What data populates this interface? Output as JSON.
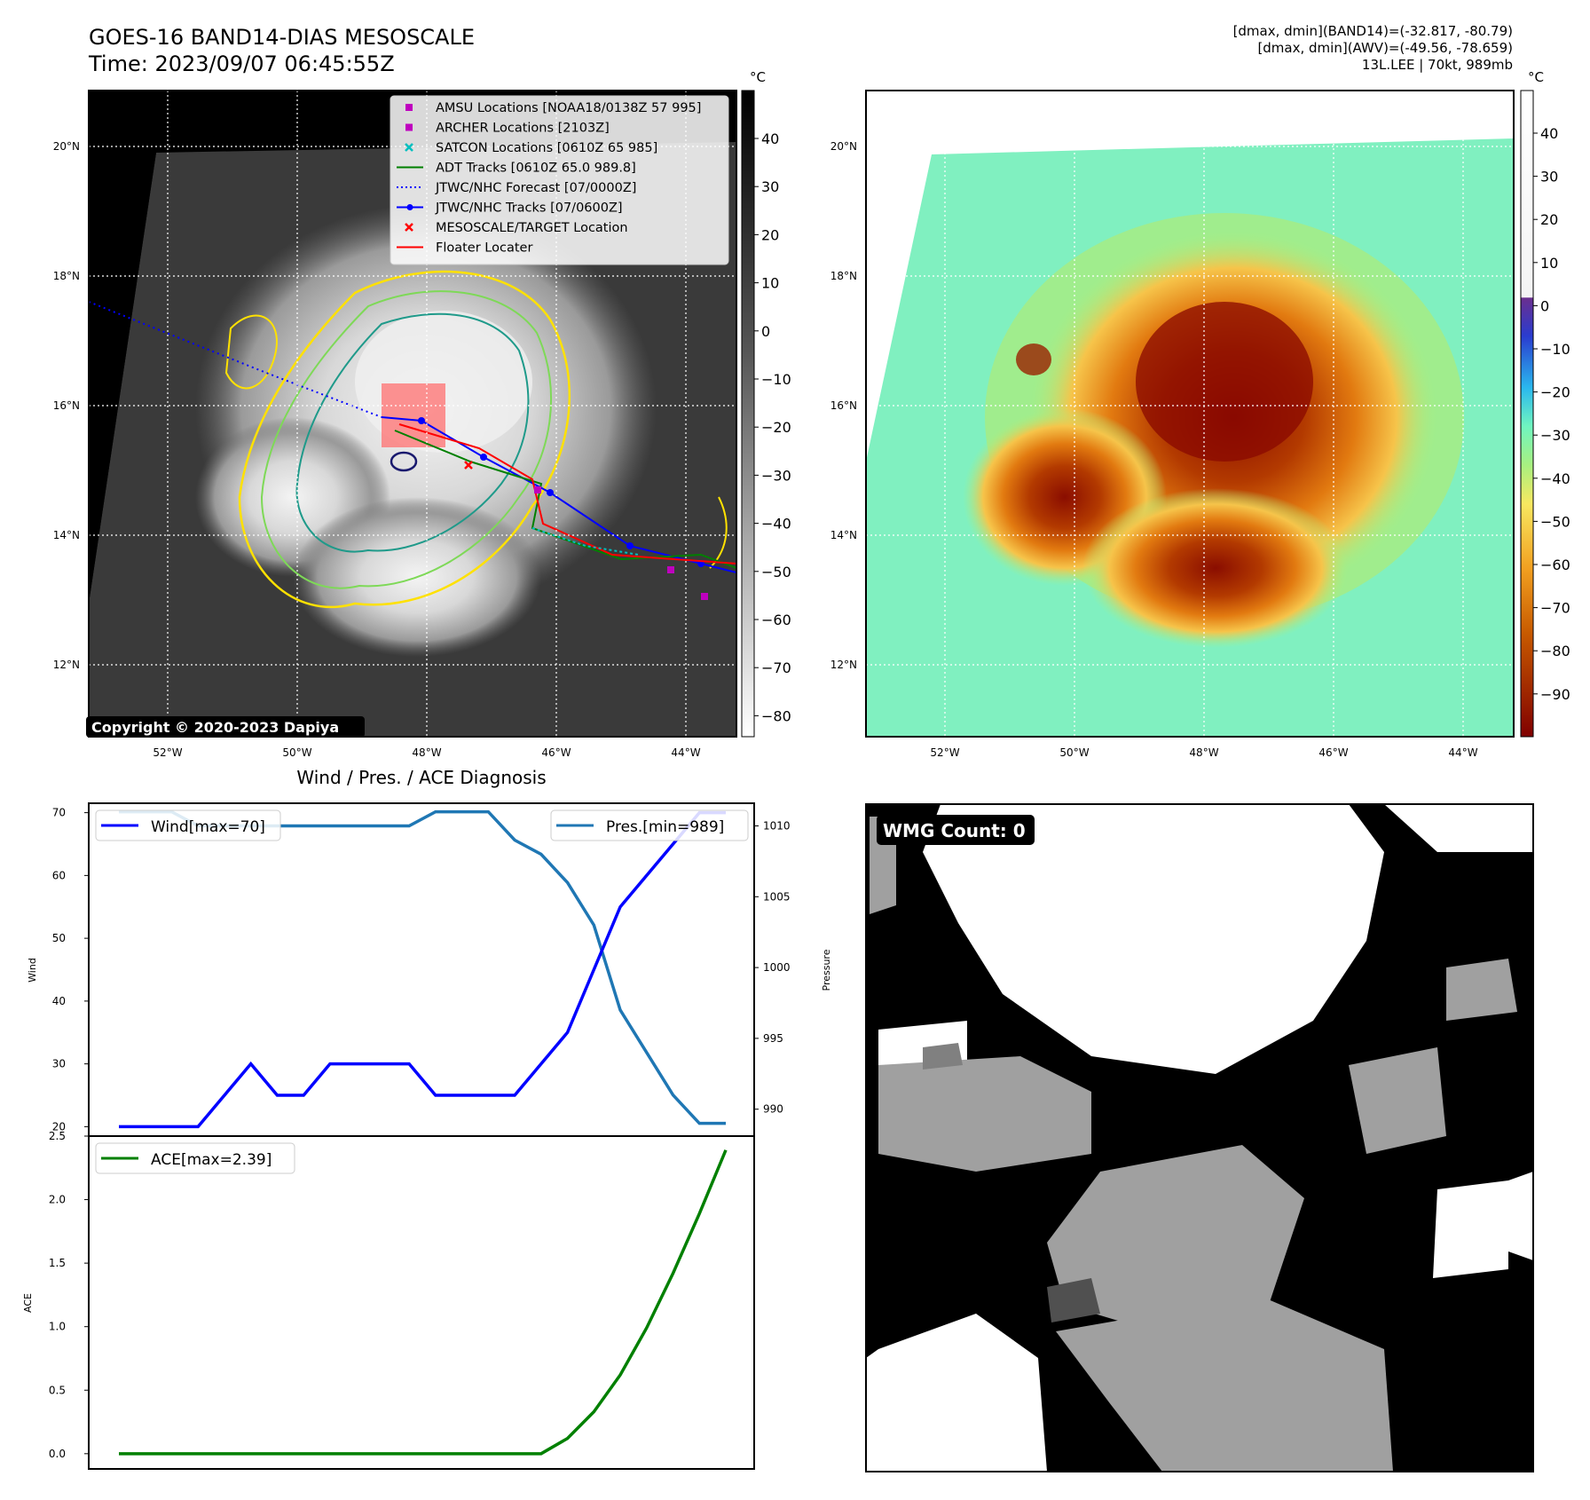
{
  "header": {
    "title_line1": "GOES-16 BAND14-DIAS MESOSCALE",
    "title_line2": "Time: 2023/09/07 06:45:55Z",
    "right_line1": "[dmax, dmin](BAND14)=(-32.817, -80.79)",
    "right_line2": "[dmax, dmin](AWV)=(-49.56, -78.659)",
    "right_line3": "13L.LEE | 70kt, 989mb"
  },
  "map_axes": {
    "lon_ticks": [
      "52°W",
      "50°W",
      "48°W",
      "46°W",
      "44°W"
    ],
    "lat_ticks": [
      "20°N",
      "18°N",
      "16°N",
      "14°N",
      "12°N"
    ]
  },
  "left_map": {
    "copyright": "Copyright © 2020-2023 Dapiya",
    "colorbar_unit": "°C",
    "colorbar_ticks": [
      "40",
      "30",
      "20",
      "10",
      "0",
      "−10",
      "−20",
      "−30",
      "−40",
      "−50",
      "−60",
      "−70",
      "−80"
    ],
    "legend": [
      {
        "label": "AMSU Locations [NOAA18/0138Z 57 995]",
        "color": "#bf00bf",
        "marker": "square"
      },
      {
        "label": "ARCHER Locations [2103Z]",
        "color": "#bf00bf",
        "marker": "square"
      },
      {
        "label": "SATCON Locations [0610Z 65 985]",
        "color": "#00bfbf",
        "marker": "x"
      },
      {
        "label": "ADT Tracks [0610Z 65.0 989.8]",
        "color": "#008000",
        "marker": "line"
      },
      {
        "label": "JTWC/NHC Forecast [07/0000Z]",
        "color": "#0000ff",
        "marker": "dotted"
      },
      {
        "label": "JTWC/NHC Tracks [07/0600Z]",
        "color": "#0000ff",
        "marker": "line-dot"
      },
      {
        "label": "MESOSCALE/TARGET Location",
        "color": "#ff0000",
        "marker": "x"
      },
      {
        "label": "Floater Locater",
        "color": "#ff0000",
        "marker": "line"
      }
    ]
  },
  "right_map": {
    "colorbar_unit": "°C",
    "colorbar_ticks": [
      "40",
      "30",
      "20",
      "10",
      "0",
      "−10",
      "−20",
      "−30",
      "−40",
      "−50",
      "−60",
      "−70",
      "−80",
      "−90"
    ]
  },
  "wmg": {
    "label": "WMG Count: 0"
  },
  "chart_data": [
    {
      "type": "line",
      "title": "Wind / Pres. / ACE Diagnosis",
      "x": [
        0,
        1,
        2,
        3,
        4,
        5,
        6,
        7,
        8,
        9,
        10,
        11,
        12,
        13,
        14,
        15,
        16,
        17,
        18,
        19,
        20,
        21,
        22,
        23
      ],
      "series": [
        {
          "name": "Wind[max=70]",
          "axis": "left",
          "color": "#0000ff",
          "values": [
            20,
            20,
            20,
            20,
            25,
            30,
            25,
            25,
            30,
            30,
            30,
            30,
            25,
            25,
            25,
            25,
            30,
            35,
            45,
            55,
            60,
            65,
            70,
            70
          ]
        },
        {
          "name": "Pres.[min=989]",
          "axis": "right",
          "color": "#1f77b4",
          "values": [
            1011,
            1011,
            1011,
            1010,
            1010,
            1010,
            1010,
            1010,
            1010,
            1010,
            1010,
            1010,
            1011,
            1011,
            1011,
            1009,
            1008,
            1006,
            1003,
            997,
            994,
            991,
            989,
            989
          ]
        }
      ],
      "ylabel": "Wind",
      "ylabel_right": "Pressure",
      "ylim": [
        18.5,
        71.5
      ],
      "ylim_right": [
        988.1,
        1011.6
      ],
      "yticks": [
        "20",
        "30",
        "40",
        "50",
        "60",
        "70"
      ],
      "yticks_right": [
        "990",
        "995",
        "1000",
        "1005",
        "1010"
      ]
    },
    {
      "type": "line",
      "x": [
        0,
        1,
        2,
        3,
        4,
        5,
        6,
        7,
        8,
        9,
        10,
        11,
        12,
        13,
        14,
        15,
        16,
        17,
        18,
        19,
        20,
        21,
        22,
        23
      ],
      "series": [
        {
          "name": "ACE[max=2.39]",
          "color": "#008000",
          "values": [
            0,
            0,
            0,
            0,
            0,
            0,
            0,
            0,
            0,
            0,
            0,
            0,
            0,
            0,
            0,
            0,
            0,
            0.12,
            0.33,
            0.62,
            0.99,
            1.42,
            1.89,
            2.39
          ]
        }
      ],
      "ylabel": "ACE",
      "ylim": [
        -0.12,
        2.5
      ],
      "yticks": [
        "0.0",
        "0.5",
        "1.0",
        "1.5",
        "2.0",
        "2.5"
      ]
    }
  ]
}
